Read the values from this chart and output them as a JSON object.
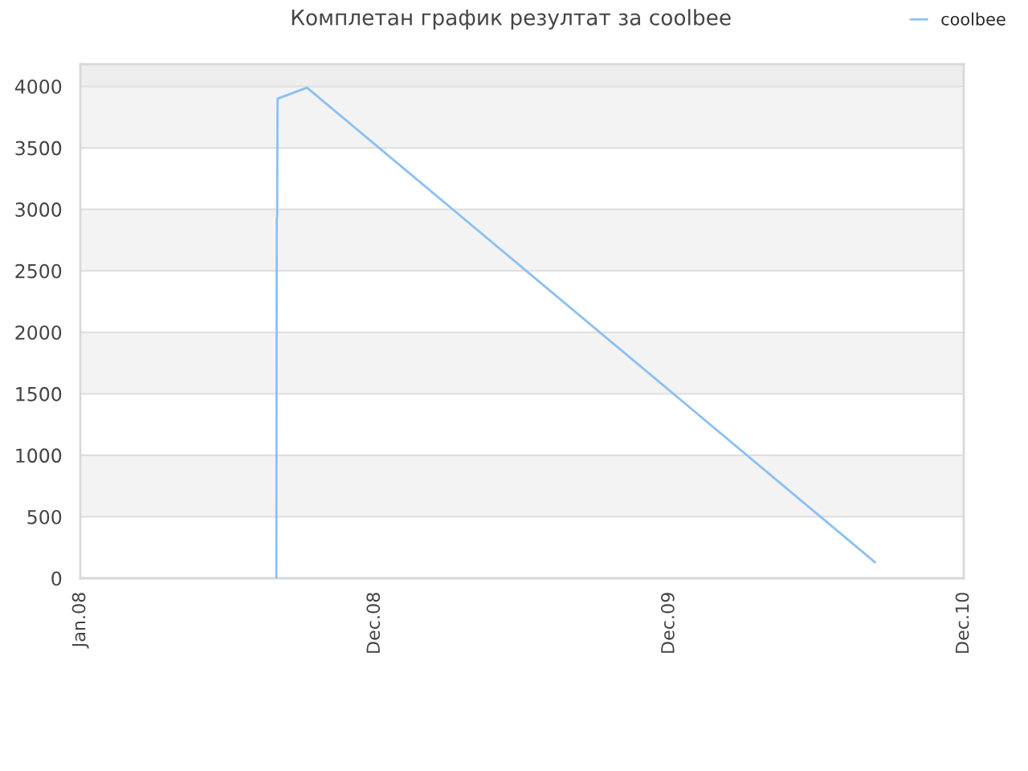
{
  "chart_data": {
    "type": "line",
    "title": "Комплетан график резултат за coolbee",
    "series": [
      {
        "name": "coolbee",
        "color": "#8cc0f2",
        "x": [
          "2008-08-31",
          "2008-08-31T12:00",
          "2008-09-01",
          "2008-09-01T12:00",
          "2008-10-08",
          "2010-09-12"
        ],
        "values": [
          0,
          2920,
          2940,
          3900,
          3990,
          130
        ]
      }
    ],
    "xlim": [
      "2008-01-01",
      "2010-12-31"
    ],
    "xticks": [
      {
        "value": "2008-01-01",
        "label": "Jan.08"
      },
      {
        "value": "2008-12-31",
        "label": "Dec.08"
      },
      {
        "value": "2009-12-31",
        "label": "Dec.09"
      },
      {
        "value": "2010-12-31",
        "label": "Dec.10"
      }
    ],
    "ylim": [
      0,
      4180
    ],
    "yticks": [
      0,
      500,
      1000,
      1500,
      2000,
      2500,
      3000,
      3500,
      4000
    ],
    "bands": [
      {
        "axis": "y",
        "from": 4000,
        "to": 4180,
        "color": "#eeeeee"
      }
    ],
    "grid": "y",
    "legend": "top right",
    "marker": "none",
    "line_style": "solid"
  }
}
